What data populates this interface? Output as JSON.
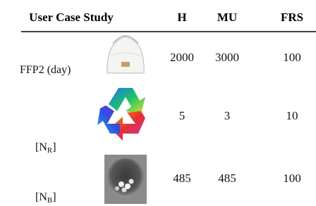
{
  "table": {
    "header": [
      "User Case Study",
      "H",
      "MU",
      "FRS"
    ],
    "rows": [
      {
        "label": {
          "text": "FFP2 (day)"
        },
        "values": [
          2000,
          3000,
          100
        ]
      },
      {
        "label": {
          "prefix": "[N",
          "sub": "R",
          "suffix": "]"
        },
        "values": [
          5,
          3,
          10
        ]
      },
      {
        "label": {
          "prefix": "[N",
          "sub": "B",
          "suffix": "]"
        },
        "values": [
          485,
          485,
          100
        ]
      }
    ]
  }
}
